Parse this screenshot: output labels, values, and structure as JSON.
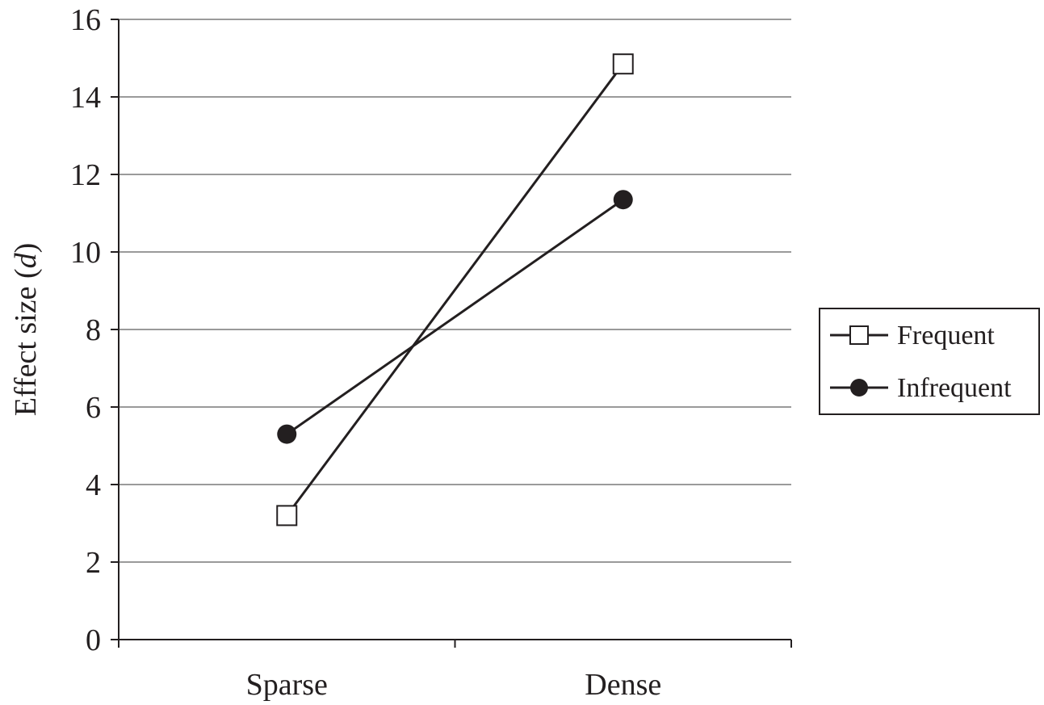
{
  "chart_data": {
    "type": "line",
    "categories": [
      "Sparse",
      "Dense"
    ],
    "y_ticks": [
      "0",
      "2",
      "4",
      "6",
      "8",
      "10",
      "12",
      "14",
      "16"
    ],
    "ylabel_prefix": "Effect size (",
    "ylabel_var": "d",
    "ylabel_suffix": ")",
    "xlabel": "",
    "title": "",
    "ylim": [
      0,
      16
    ],
    "grid": true,
    "legend_position": "right",
    "series": [
      {
        "name": "Frequent",
        "marker": "open-square",
        "values": [
          3.2,
          14.85
        ]
      },
      {
        "name": "Infrequent",
        "marker": "filled-circle",
        "values": [
          5.3,
          11.35
        ]
      }
    ],
    "colors": {
      "line": "#231f20",
      "grid": "#9a9a9a",
      "marker_fill_open": "#ffffff",
      "marker_fill_solid": "#231f20"
    }
  }
}
